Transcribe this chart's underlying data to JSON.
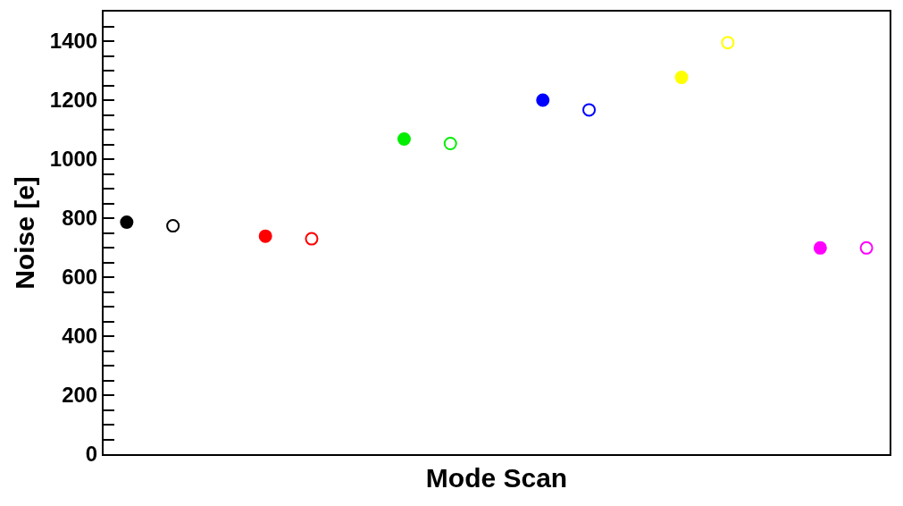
{
  "chart_data": {
    "type": "scatter",
    "xlabel": "Mode Scan",
    "ylabel": "Noise [e]",
    "categories": [
      null,
      null,
      null,
      null,
      null,
      null,
      null,
      null,
      null,
      null,
      null,
      null,
      null,
      null,
      null,
      null,
      null
    ],
    "series": [
      {
        "marker": "circle",
        "colors": [
          "#000000",
          null,
          null,
          "#ff0000",
          null,
          null,
          "#00ee00",
          null,
          null,
          "#0000ff",
          null,
          null,
          "#ffff00",
          null,
          null,
          "#ff00ff",
          null
        ],
        "values": [
          786,
          null,
          null,
          739,
          null,
          null,
          1068,
          null,
          null,
          1200,
          null,
          null,
          1277,
          null,
          null,
          699,
          null
        ]
      },
      {
        "marker": "circle",
        "colors": [
          null,
          "#000000",
          null,
          null,
          "#ff0000",
          null,
          null,
          "#00ee00",
          null,
          null,
          "#0000ff",
          null,
          null,
          "#ffff00",
          null,
          null,
          "#ff00ff"
        ],
        "values": [
          null,
          774,
          null,
          null,
          730,
          null,
          null,
          1053,
          null,
          null,
          1167,
          null,
          null,
          1395,
          null,
          null,
          699
        ]
      }
    ],
    "ylim": [
      0,
      1500
    ],
    "yticks": [
      0,
      200,
      400,
      600,
      800,
      1000,
      1200,
      1400,
      {
        "value": 50,
        "label": null
      },
      {
        "value": 100,
        "label": null
      },
      {
        "value": 150,
        "label": null
      },
      {
        "value": 250,
        "label": null
      },
      {
        "value": 300,
        "label": null
      },
      {
        "value": 350,
        "label": null
      },
      {
        "value": 450,
        "label": null
      },
      {
        "value": 500,
        "label": null
      },
      {
        "value": 550,
        "label": null
      },
      {
        "value": 650,
        "label": null
      },
      {
        "value": 700,
        "label": null
      },
      {
        "value": 750,
        "label": null
      },
      {
        "value": 850,
        "label": null
      },
      {
        "value": 900,
        "label": null
      },
      {
        "value": 950,
        "label": null
      },
      {
        "value": 1050,
        "label": null
      },
      {
        "value": 1100,
        "label": null
      },
      {
        "value": 1150,
        "label": null
      },
      {
        "value": 1250,
        "label": null
      },
      {
        "value": 1300,
        "label": null
      },
      {
        "value": 1350,
        "label": null
      },
      {
        "value": 1450,
        "label": null
      }
    ],
    "tick_labels": "y"
  }
}
